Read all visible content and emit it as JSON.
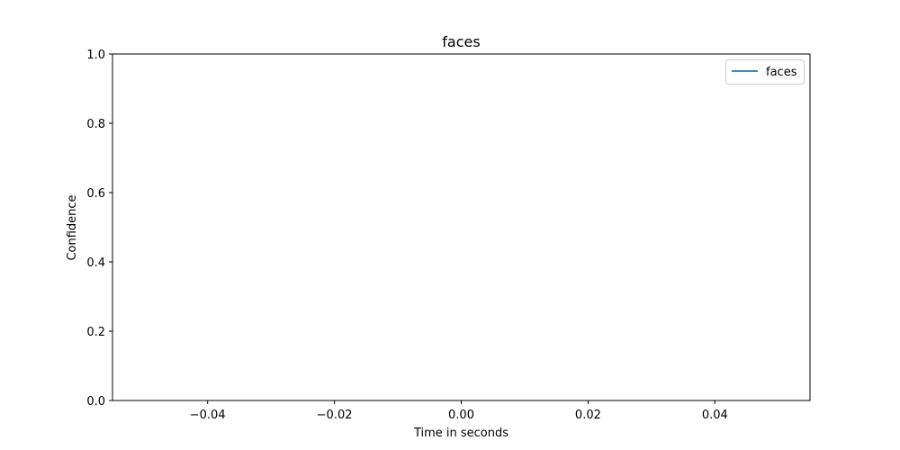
{
  "chart_data": {
    "type": "line",
    "title": "faces",
    "xlabel": "Time in seconds",
    "ylabel": "Confidence",
    "xlim": [
      -0.055,
      0.055
    ],
    "ylim": [
      0.0,
      1.0
    ],
    "xticks": [
      -0.04,
      -0.02,
      0.0,
      0.02,
      0.04
    ],
    "xtick_labels": [
      "−0.04",
      "−0.02",
      "0.00",
      "0.02",
      "0.04"
    ],
    "yticks": [
      0.0,
      0.2,
      0.4,
      0.6,
      0.8,
      1.0
    ],
    "ytick_labels": [
      "0.0",
      "0.2",
      "0.4",
      "0.6",
      "0.8",
      "1.0"
    ],
    "grid": false,
    "legend_position": "top-right",
    "series": [
      {
        "name": "faces",
        "color": "#1f77b4",
        "x": [],
        "y": []
      }
    ]
  }
}
